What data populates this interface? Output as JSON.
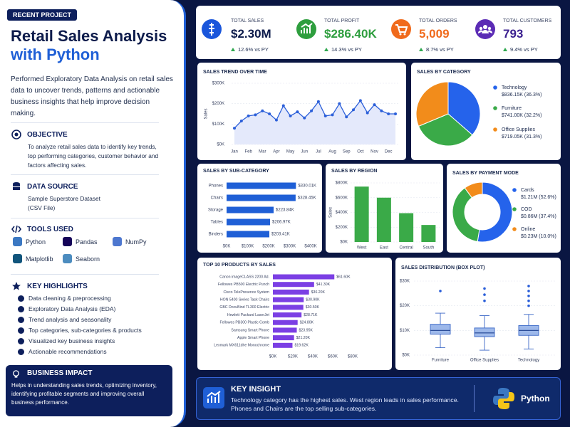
{
  "sidebar": {
    "badge": "RECENT PROJECT",
    "title_line1": "Retail Sales Analysis",
    "title_line2": "with Python",
    "description": "Performed Exploratory Data Analysis on retail sales data to uncover trends, patterns and actionable business insights that help improve decision making.",
    "objective": {
      "title": "OBJECTIVE",
      "text": "To analyze retail sales data to identify key trends, top performing categories, customer behavior and factors affecting sales."
    },
    "data_source": {
      "title": "DATA SOURCE",
      "lines": [
        "Sample Superstore Dataset",
        "(CSV File)"
      ]
    },
    "tools": {
      "title": "TOOLS USED",
      "items": [
        "Python",
        "Pandas",
        "NumPy",
        "Matplotlib",
        "Seaborn"
      ]
    },
    "highlights": {
      "title": "KEY HIGHLIGHTS",
      "items": [
        "Data cleaning & preprocessing",
        "Exploratory Data Analysis (EDA)",
        "Trend analysis and seasonality",
        "Top categories, sub-categories & products",
        "Visualized key business insights",
        "Actionable recommendations"
      ]
    },
    "impact": {
      "title": "BUSINESS IMPACT",
      "text": "Helps in understanding sales trends, optimizing inventory, identifying profitable segments and improving overall business performance."
    }
  },
  "kpis": [
    {
      "label": "TOTAL SALES",
      "value": "$2.30M",
      "change": "12.6% vs PY"
    },
    {
      "label": "TOTAL PROFIT",
      "value": "$286.40K",
      "change": "14.3% vs PY"
    },
    {
      "label": "TOTAL ORDERS",
      "value": "5,009",
      "change": "8.7% vs PY"
    },
    {
      "label": "TOTAL CUSTOMERS",
      "value": "793",
      "change": "9.4% vs PY"
    }
  ],
  "chart_data": [
    {
      "type": "line",
      "title": "SALES TREND OVER TIME",
      "y_label": "Sales",
      "color": "#2b5fd9",
      "grid": true,
      "categories": [
        "Jan",
        null,
        "Feb",
        null,
        "Mar",
        null,
        "Apr",
        null,
        "May",
        null,
        "Jun",
        null,
        "Jul",
        null,
        "Aug",
        null,
        "Sep",
        null,
        "Oct",
        null,
        "Nov",
        null,
        "Dec",
        null
      ],
      "values": [
        80000,
        115000,
        140000,
        145000,
        165000,
        150000,
        120000,
        190000,
        140000,
        160000,
        130000,
        165000,
        210000,
        140000,
        145000,
        200000,
        135000,
        170000,
        215000,
        155000,
        195000,
        165000,
        150000,
        150000
      ],
      "ylim": [
        0,
        300000
      ],
      "yticks": [
        {
          "value": 0,
          "label": "$0K"
        },
        {
          "value": 100000,
          "label": "$100K"
        },
        {
          "value": 200000,
          "label": "$200K"
        },
        {
          "value": 300000,
          "label": "$300K"
        }
      ]
    },
    {
      "type": "pie",
      "title": "SALES BY CATEGORY",
      "categories": [
        "Technology",
        "Furniture",
        "Office Supplies"
      ],
      "values": [
        836150,
        741000,
        719050
      ],
      "value_labels": [
        "$836.15K (36.3%)",
        "$741.00K (32.2%)",
        "$719.05K (31.3%)"
      ],
      "colors": [
        "#2563eb",
        "#3aaa48",
        "#f28c1b"
      ]
    },
    {
      "type": "hbar",
      "title": "SALES BY SUB-CATEGORY",
      "categories": [
        "Phones",
        "Chairs",
        "Storage",
        "Tables",
        "Binders"
      ],
      "values": [
        330010,
        328450,
        223840,
        206970,
        203410
      ],
      "value_labels": [
        "$330.01K",
        "$328.45K",
        "$223.84K",
        "$206.97K",
        "$203.41K"
      ],
      "color": "#1f5fd6",
      "grid": false,
      "xlim": [
        0,
        400000
      ],
      "xticks": [
        {
          "value": 0,
          "label": "$0K"
        },
        {
          "value": 100000,
          "label": "$100K"
        },
        {
          "value": 200000,
          "label": "$200K"
        },
        {
          "value": 300000,
          "label": "$300K"
        },
        {
          "value": 400000,
          "label": "$400K"
        }
      ]
    },
    {
      "type": "bar",
      "title": "SALES BY REGION",
      "y_label": "Sales",
      "categories": [
        "West",
        "East",
        "Central",
        "South"
      ],
      "values": [
        750000,
        600000,
        390000,
        230000
      ],
      "color": "#3aaa48",
      "grid": true,
      "ylim": [
        0,
        800000
      ],
      "yticks": [
        {
          "value": 0,
          "label": "$0K"
        },
        {
          "value": 200000,
          "label": "$200K"
        },
        {
          "value": 400000,
          "label": "$400K"
        },
        {
          "value": 600000,
          "label": "$600K"
        },
        {
          "value": 800000,
          "label": "$800K"
        }
      ]
    },
    {
      "type": "donut",
      "title": "SALES BY PAYMENT MODE",
      "categories": [
        "Cards",
        "COD",
        "Online"
      ],
      "values": [
        1210000,
        860000,
        230000
      ],
      "value_labels": [
        "$1.21M (52.6%)",
        "$0.86M (37.4%)",
        "$0.23M (10.0%)"
      ],
      "colors": [
        "#2563eb",
        "#3aaa48",
        "#f28c1b"
      ]
    },
    {
      "type": "hbar",
      "title": "TOP 10 PRODUCTS BY SALES",
      "categories": [
        "Canon imageCLASS 2200 Ad.",
        "Fellowes PB500 Electric Punch",
        "Cisco TelePresence System",
        "HON 5400 Series Task Chairs",
        "GBC DocuBind TL300 Electric",
        "Hewlett Packard LaserJet",
        "Fellowes PB300 Plastic Comb",
        "Samsung Smart Phone",
        "Apple Smart Phone",
        "Lexmark MX611dhe Monochrome"
      ],
      "values": [
        61600,
        41300,
        36200,
        30900,
        30500,
        28710,
        24800,
        23950,
        21200,
        19620
      ],
      "value_labels": [
        "$61.60K",
        "$41.30K",
        "$36.20K",
        "$30.90K",
        "$30.50K",
        "$28.71K",
        "$24.80K",
        "$23.95K",
        "$21.20K",
        "$19.62K"
      ],
      "color": "#7b3fe4",
      "grid": false,
      "xlim": [
        0,
        80000
      ],
      "xticks": [
        {
          "value": 0,
          "label": "$0K"
        },
        {
          "value": 20000,
          "label": "$20K"
        },
        {
          "value": 40000,
          "label": "$40K"
        },
        {
          "value": 60000,
          "label": "$60K"
        },
        {
          "value": 80000,
          "label": "$80K"
        }
      ]
    },
    {
      "type": "box",
      "title": "SALES DISTRIBUTION (BOX PLOT)",
      "categories": [
        "Furniture",
        "Office Supplies",
        "Technology"
      ],
      "color": "#3a67c6",
      "grid": true,
      "boxes": [
        {
          "whisker_low": 3000,
          "q1": 8500,
          "median": 10000,
          "q3": 12500,
          "whisker_high": 17000,
          "outliers": [
            26000
          ]
        },
        {
          "whisker_low": 2000,
          "q1": 7500,
          "median": 9000,
          "q3": 11000,
          "whisker_high": 16000,
          "outliers": [
            22000,
            24500,
            27000
          ]
        },
        {
          "whisker_low": 2500,
          "q1": 8000,
          "median": 10000,
          "q3": 12000,
          "whisker_high": 16500,
          "outliers": [
            20000,
            22000,
            24000,
            26000,
            28000
          ]
        }
      ],
      "ylim": [
        0,
        30000
      ],
      "yticks": [
        {
          "value": 0,
          "label": "$0K"
        },
        {
          "value": 10000,
          "label": "$10K"
        },
        {
          "value": 20000,
          "label": "$20K"
        },
        {
          "value": 30000,
          "label": "$30K"
        }
      ]
    }
  ],
  "insight": {
    "title": "KEY INSIGHT",
    "text": "Technology category has the highest sales. West region leads in sales performance. Phones and Chairs are the top selling sub-categories.",
    "badge": "Python"
  }
}
